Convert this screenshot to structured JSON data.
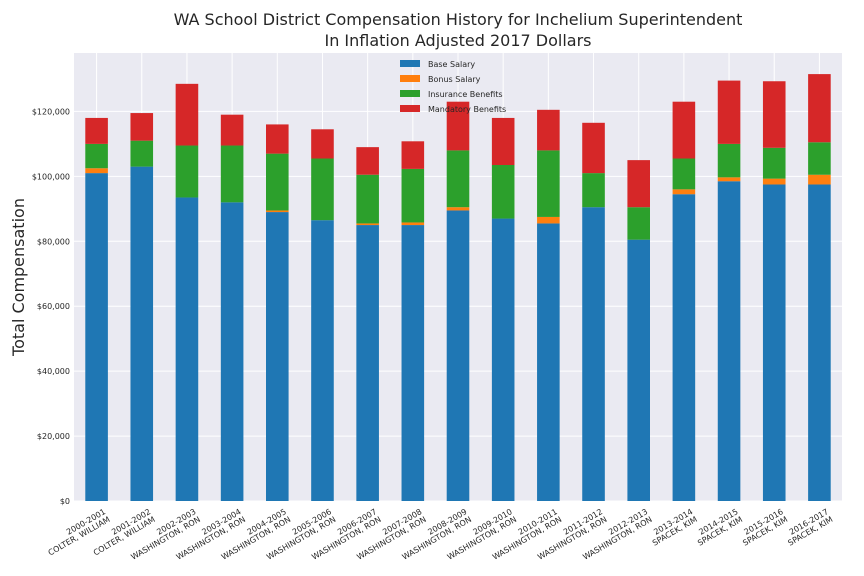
{
  "chart_data": {
    "type": "bar",
    "stacked": true,
    "title": [
      "WA School District Compensation History for Inchelium Superintendent",
      "In Inflation Adjusted 2017 Dollars"
    ],
    "xlabel": "",
    "ylabel": "Total Compensation",
    "ylim": [
      0,
      138000
    ],
    "yticks": [
      0,
      20000,
      40000,
      60000,
      80000,
      100000,
      120000
    ],
    "ytick_labels": [
      "$0",
      "$20,000",
      "$40,000",
      "$60,000",
      "$80,000",
      "$100,000",
      "$120,000"
    ],
    "grid": true,
    "legend_position": "top-center",
    "categories": [
      [
        "2000-2001",
        "COLTER, WILLIAM"
      ],
      [
        "2001-2002",
        "COLTER, WILLIAM"
      ],
      [
        "2002-2003",
        "WASHINGTON, RON"
      ],
      [
        "2003-2004",
        "WASHINGTON, RON"
      ],
      [
        "2004-2005",
        "WASHINGTON, RON"
      ],
      [
        "2005-2006",
        "WASHINGTON, RON"
      ],
      [
        "2006-2007",
        "WASHINGTON, RON"
      ],
      [
        "2007-2008",
        "WASHINGTON, RON"
      ],
      [
        "2008-2009",
        "WASHINGTON, RON"
      ],
      [
        "2009-2010",
        "WASHINGTON, RON"
      ],
      [
        "2010-2011",
        "WASHINGTON, RON"
      ],
      [
        "2011-2012",
        "WASHINGTON, RON"
      ],
      [
        "2012-2013",
        "WASHINGTON, RON"
      ],
      [
        "2013-2014",
        "SPACEK, KIM"
      ],
      [
        "2014-2015",
        "SPACEK, KIM"
      ],
      [
        "2015-2016",
        "SPACEK, KIM"
      ],
      [
        "2016-2017",
        "SPACEK, KIM"
      ]
    ],
    "series": [
      {
        "name": "Base Salary",
        "color": "#1f77b4",
        "values": [
          101000,
          103000,
          93500,
          92000,
          89000,
          86500,
          85000,
          85000,
          89500,
          87000,
          85500,
          90500,
          80500,
          94500,
          98500,
          97500,
          97500
        ]
      },
      {
        "name": "Bonus Salary",
        "color": "#ff7f0e",
        "values": [
          1500,
          0,
          0,
          0,
          500,
          0,
          500,
          800,
          1000,
          0,
          2000,
          0,
          0,
          1500,
          1200,
          1800,
          3000
        ]
      },
      {
        "name": "Insurance Benefits",
        "color": "#2ca02c",
        "values": [
          7500,
          8000,
          16000,
          17500,
          17500,
          19000,
          15000,
          16500,
          17500,
          16500,
          20500,
          10500,
          10000,
          9500,
          10300,
          9500,
          10000
        ]
      },
      {
        "name": "Mandatory Benefits",
        "color": "#d62728",
        "values": [
          8000,
          8500,
          19000,
          9500,
          9000,
          9000,
          8500,
          8500,
          15000,
          14500,
          12500,
          15500,
          14500,
          17500,
          19500,
          20500,
          21000
        ]
      }
    ]
  }
}
